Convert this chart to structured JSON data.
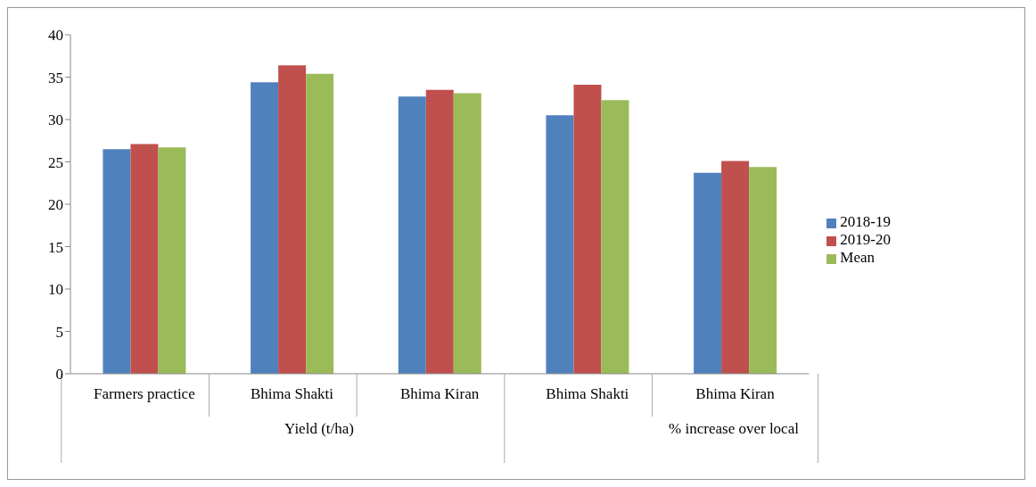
{
  "chart_data": {
    "type": "bar",
    "categories": [
      "Farmers practice",
      "Bhima Shakti",
      "Bhima Kiran",
      "Bhima Shakti",
      "Bhima Kiran"
    ],
    "series": [
      {
        "name": "2018-19",
        "color": "#4f81bd",
        "values": [
          26.5,
          34.4,
          32.7,
          30.5,
          23.7
        ]
      },
      {
        "name": "2019-20",
        "color": "#c0504d",
        "values": [
          27.1,
          36.4,
          33.5,
          34.1,
          25.1
        ]
      },
      {
        "name": "Mean",
        "color": "#9bbb59",
        "values": [
          26.7,
          35.4,
          33.1,
          32.3,
          24.4
        ]
      }
    ],
    "annotations": [
      "Yield (t/ha)",
      "% increase over local"
    ],
    "ylim": [
      0,
      40
    ],
    "yticks": [
      0,
      5,
      10,
      15,
      20,
      25,
      30,
      35,
      40
    ],
    "grid": false,
    "legend": "right"
  }
}
